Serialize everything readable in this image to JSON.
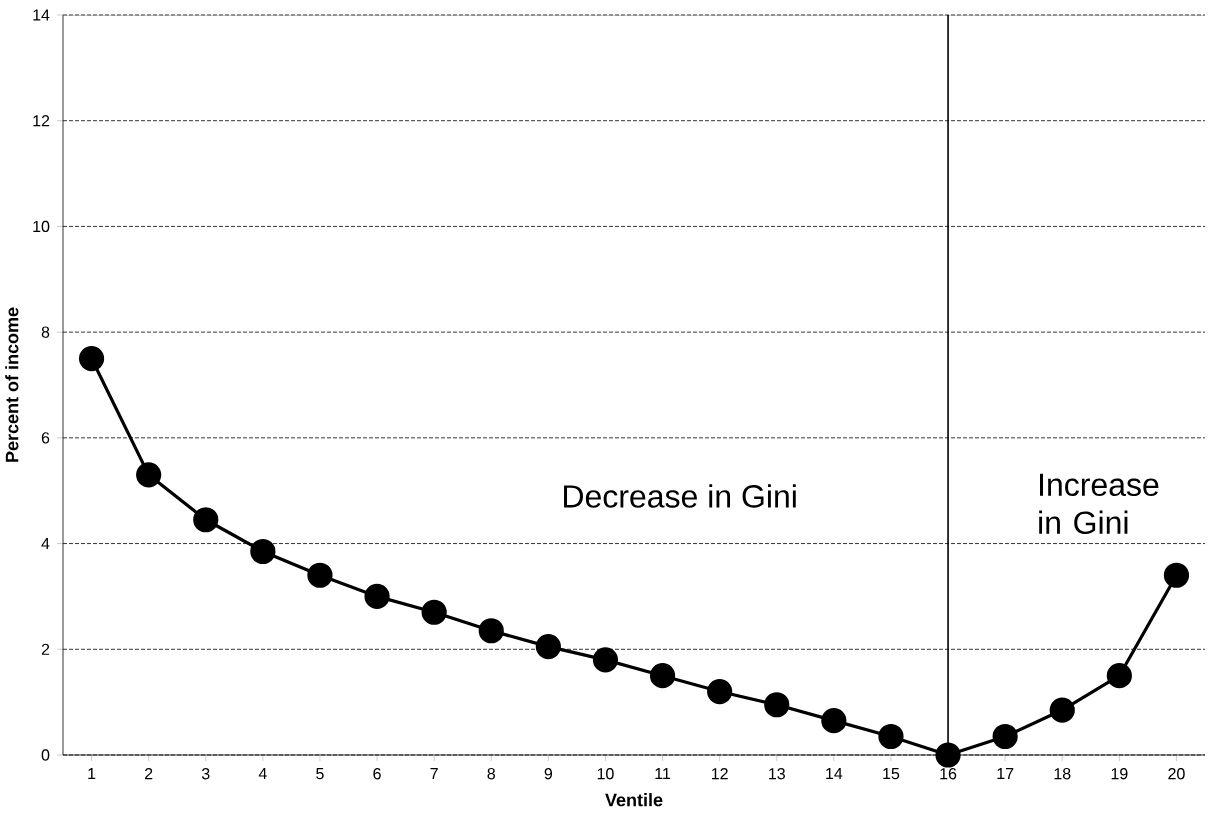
{
  "chart_data": {
    "type": "line",
    "xlabel": "Ventile",
    "ylabel": "Percent of income",
    "x": [
      1,
      2,
      3,
      4,
      5,
      6,
      7,
      8,
      9,
      10,
      11,
      12,
      13,
      14,
      15,
      16,
      17,
      18,
      19,
      20
    ],
    "values": [
      7.5,
      5.3,
      4.45,
      3.85,
      3.4,
      3.0,
      2.7,
      2.35,
      2.05,
      1.8,
      1.5,
      1.2,
      0.95,
      0.65,
      0.35,
      0,
      0.35,
      0.85,
      1.5,
      3.4
    ],
    "color": "#000000",
    "marker": "circle",
    "line_style": "solid",
    "xlim": [
      0.5,
      20.5
    ],
    "xticks": [
      1,
      2,
      3,
      4,
      5,
      6,
      7,
      8,
      9,
      10,
      11,
      12,
      13,
      14,
      15,
      16,
      17,
      18,
      19,
      20
    ],
    "ylim": [
      0,
      14
    ],
    "yticks": [
      0,
      2,
      4,
      6,
      8,
      10,
      12,
      14
    ],
    "grid": "y",
    "ref_lines": [
      {
        "axis": "x",
        "value": 16,
        "color": "#000000"
      }
    ],
    "annotations": [
      "Decrease  in Gini",
      "Increase in Gini"
    ]
  }
}
